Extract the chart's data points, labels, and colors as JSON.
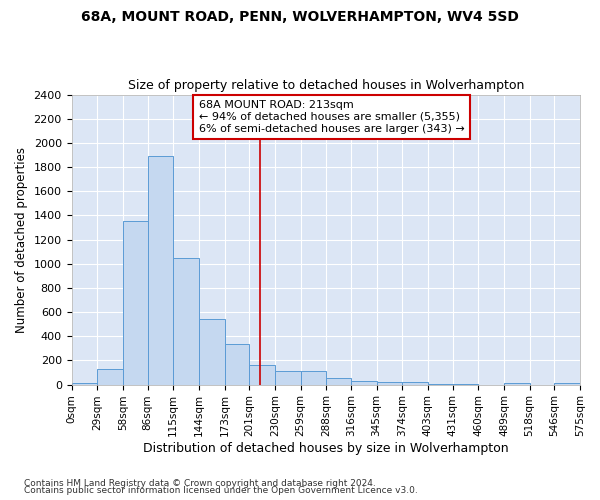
{
  "title": "68A, MOUNT ROAD, PENN, WOLVERHAMPTON, WV4 5SD",
  "subtitle": "Size of property relative to detached houses in Wolverhampton",
  "xlabel": "Distribution of detached houses by size in Wolverhampton",
  "ylabel": "Number of detached properties",
  "footnote1": "Contains HM Land Registry data © Crown copyright and database right 2024.",
  "footnote2": "Contains public sector information licensed under the Open Government Licence v3.0.",
  "annotation_title": "68A MOUNT ROAD: 213sqm",
  "annotation_line1": "← 94% of detached houses are smaller (5,355)",
  "annotation_line2": "6% of semi-detached houses are larger (343) →",
  "property_size": 213,
  "bin_edges": [
    0,
    29,
    58,
    86,
    115,
    144,
    173,
    201,
    230,
    259,
    288,
    316,
    345,
    374,
    403,
    431,
    460,
    489,
    518,
    546,
    575
  ],
  "bar_heights": [
    15,
    130,
    1350,
    1890,
    1050,
    545,
    335,
    165,
    110,
    110,
    55,
    30,
    25,
    20,
    5,
    5,
    0,
    15,
    0,
    15
  ],
  "bar_color": "#c5d8f0",
  "bar_edge_color": "#5b9bd5",
  "vline_color": "#cc0000",
  "annotation_box_color": "#cc0000",
  "background_color": "#dce6f5",
  "grid_color": "#ffffff",
  "ylim": [
    0,
    2400
  ],
  "yticks": [
    0,
    200,
    400,
    600,
    800,
    1000,
    1200,
    1400,
    1600,
    1800,
    2000,
    2200,
    2400
  ]
}
